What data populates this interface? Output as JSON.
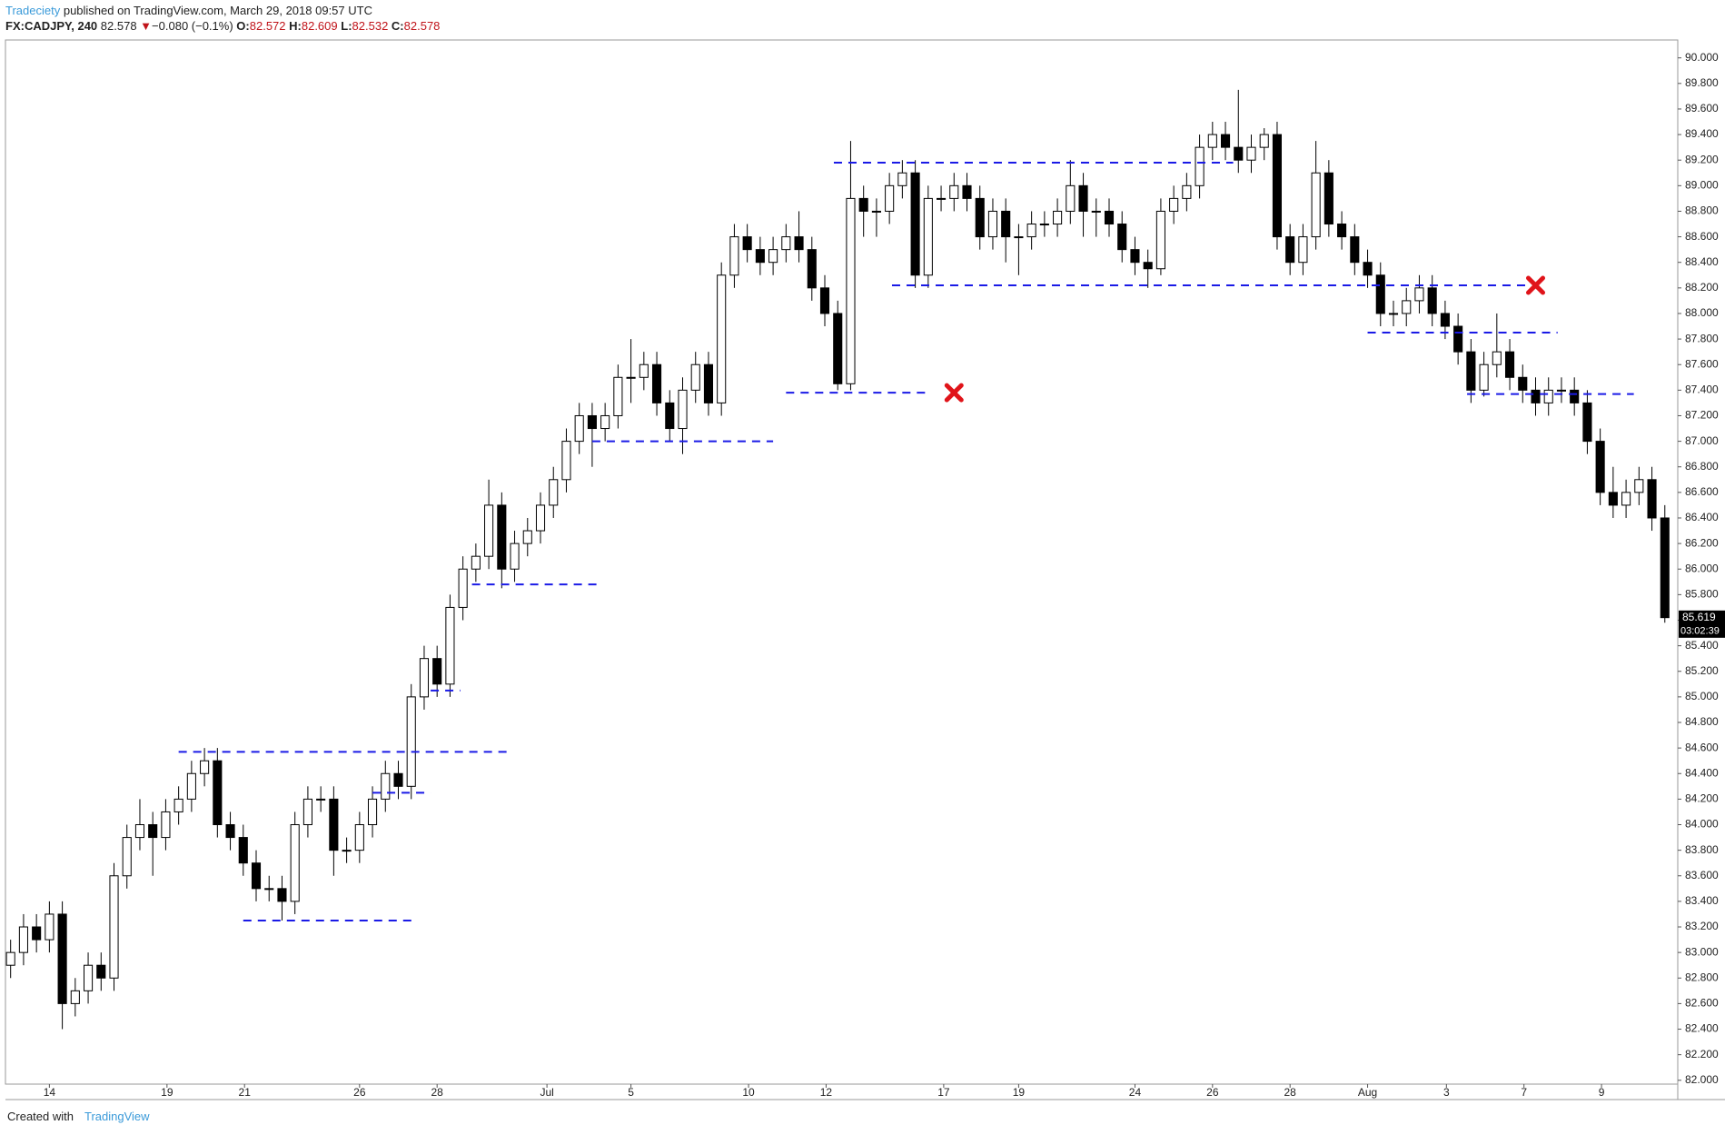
{
  "header": {
    "author": "Tradeciety",
    "published": "published on TradingView.com, March 29, 2018 09:57 UTC",
    "symbol": "FX:CADJPY, 240",
    "last": "82.578",
    "arrow": "▼",
    "change": "−0.080 (−0.1%)",
    "open_label": "O:",
    "open": "82.572",
    "high_label": "H:",
    "high": "82.609",
    "low_label": "L:",
    "low": "82.532",
    "close_label": "C:",
    "close": "82.578"
  },
  "footer": {
    "created": "Created with",
    "brand": "TradingView"
  },
  "chart_data": {
    "type": "candlestick",
    "up_color": "#ffffff",
    "down_color": "#000000",
    "wick_color": "#000000",
    "level_color": "#1a1ae6",
    "marker_color": "#e0141a",
    "open": [
      82.9,
      83.0,
      83.2,
      83.1,
      83.3,
      82.6,
      82.7,
      82.9,
      82.8,
      83.6,
      83.9,
      84.0,
      83.9,
      84.1,
      84.2,
      84.4,
      84.5,
      84.0,
      83.9,
      83.7,
      83.5,
      83.5,
      83.4,
      84.0,
      84.2,
      84.2,
      83.8,
      83.8,
      84.0,
      84.2,
      84.4,
      84.3,
      85.0,
      85.3,
      85.1,
      85.7,
      86.0,
      86.1,
      86.5,
      86.0,
      86.2,
      86.3,
      86.5,
      86.7,
      87.0,
      87.2,
      87.1,
      87.2,
      87.5,
      87.5,
      87.6,
      87.3,
      87.1,
      87.4,
      87.6,
      87.3,
      88.3,
      88.6,
      88.5,
      88.4,
      88.5,
      88.6,
      88.5,
      88.2,
      88.0,
      87.45,
      88.9,
      88.8,
      88.8,
      89.0,
      89.1,
      88.3,
      88.9,
      88.9,
      89.0,
      88.9,
      88.6,
      88.8,
      88.6,
      88.6,
      88.7,
      88.7,
      88.8,
      89.0,
      88.8,
      88.8,
      88.7,
      88.5,
      88.4,
      88.35,
      88.8,
      88.9,
      89.0,
      89.3,
      89.4,
      89.3,
      89.2,
      89.3,
      89.4,
      88.6,
      88.4,
      88.6,
      89.1,
      88.7,
      88.6,
      88.4,
      88.3,
      88.0,
      88.0,
      88.1,
      88.2,
      88.0,
      87.9,
      87.7,
      87.4,
      87.6,
      87.7,
      87.5,
      87.4,
      87.3,
      87.4,
      87.4,
      87.3,
      87.0,
      86.6,
      86.5,
      86.6,
      86.7,
      86.4
    ],
    "high": [
      83.1,
      83.3,
      83.3,
      83.4,
      83.4,
      82.8,
      83.0,
      83.0,
      83.7,
      84.0,
      84.2,
      84.1,
      84.2,
      84.3,
      84.5,
      84.6,
      84.6,
      84.1,
      84.0,
      83.8,
      83.6,
      83.6,
      84.1,
      84.3,
      84.3,
      84.3,
      83.9,
      84.1,
      84.3,
      84.5,
      84.5,
      85.1,
      85.4,
      85.4,
      85.8,
      86.1,
      86.2,
      86.7,
      86.6,
      86.3,
      86.4,
      86.6,
      86.8,
      87.1,
      87.3,
      87.3,
      87.3,
      87.6,
      87.8,
      87.7,
      87.7,
      87.4,
      87.5,
      87.7,
      87.7,
      88.4,
      88.7,
      88.7,
      88.6,
      88.6,
      88.7,
      88.8,
      88.6,
      88.3,
      88.1,
      89.35,
      89.0,
      88.9,
      89.1,
      89.2,
      89.2,
      89.0,
      89.0,
      89.1,
      89.1,
      89.0,
      88.9,
      88.9,
      88.7,
      88.8,
      88.8,
      88.9,
      89.2,
      89.1,
      88.9,
      88.9,
      88.8,
      88.6,
      88.5,
      88.9,
      89.0,
      89.1,
      89.4,
      89.5,
      89.5,
      89.75,
      89.4,
      89.45,
      89.5,
      88.7,
      88.7,
      89.35,
      89.2,
      88.8,
      88.7,
      88.5,
      88.4,
      88.1,
      88.2,
      88.3,
      88.3,
      88.1,
      88.0,
      87.8,
      87.7,
      88.0,
      87.8,
      87.6,
      87.5,
      87.5,
      87.5,
      87.5,
      87.4,
      87.1,
      86.8,
      86.7,
      86.8,
      86.8,
      86.5
    ],
    "low": [
      82.8,
      82.9,
      83.0,
      83.0,
      82.4,
      82.5,
      82.6,
      82.7,
      82.7,
      83.5,
      83.8,
      83.6,
      83.8,
      84.0,
      84.1,
      84.3,
      83.9,
      83.8,
      83.6,
      83.4,
      83.4,
      83.25,
      83.3,
      83.9,
      84.1,
      83.6,
      83.7,
      83.7,
      83.9,
      84.1,
      84.2,
      84.2,
      84.9,
      85.0,
      85.0,
      85.6,
      85.9,
      86.0,
      85.85,
      85.9,
      86.1,
      86.2,
      86.4,
      86.6,
      86.9,
      86.8,
      87.0,
      87.1,
      87.3,
      87.4,
      87.2,
      87.0,
      86.9,
      87.3,
      87.2,
      87.2,
      88.2,
      88.4,
      88.3,
      88.3,
      88.4,
      88.4,
      88.1,
      87.9,
      87.4,
      87.4,
      88.6,
      88.6,
      88.7,
      88.9,
      88.2,
      88.2,
      88.8,
      88.8,
      88.8,
      88.5,
      88.5,
      88.4,
      88.3,
      88.5,
      88.6,
      88.6,
      88.7,
      88.6,
      88.6,
      88.6,
      88.4,
      88.3,
      88.2,
      88.3,
      88.7,
      88.8,
      88.9,
      89.2,
      89.2,
      89.1,
      89.1,
      89.2,
      88.5,
      88.3,
      88.3,
      88.5,
      88.6,
      88.5,
      88.3,
      88.2,
      87.9,
      87.9,
      87.9,
      88.0,
      87.9,
      87.8,
      87.6,
      87.3,
      87.35,
      87.5,
      87.4,
      87.3,
      87.2,
      87.2,
      87.3,
      87.2,
      86.9,
      86.5,
      86.4,
      86.4,
      86.5,
      86.3,
      85.58
    ],
    "close": [
      83.0,
      83.2,
      83.1,
      83.3,
      82.6,
      82.7,
      82.9,
      82.8,
      83.6,
      83.9,
      84.0,
      83.9,
      84.1,
      84.2,
      84.4,
      84.5,
      84.0,
      83.9,
      83.7,
      83.5,
      83.5,
      83.4,
      84.0,
      84.2,
      84.2,
      83.8,
      83.8,
      84.0,
      84.2,
      84.4,
      84.3,
      85.0,
      85.3,
      85.1,
      85.7,
      86.0,
      86.1,
      86.5,
      86.0,
      86.2,
      86.3,
      86.5,
      86.7,
      87.0,
      87.2,
      87.1,
      87.2,
      87.5,
      87.5,
      87.6,
      87.3,
      87.1,
      87.4,
      87.6,
      87.3,
      88.3,
      88.6,
      88.5,
      88.4,
      88.5,
      88.6,
      88.5,
      88.2,
      88.0,
      87.45,
      88.9,
      88.8,
      88.8,
      89.0,
      89.1,
      88.3,
      88.9,
      88.9,
      89.0,
      88.9,
      88.6,
      88.8,
      88.6,
      88.6,
      88.7,
      88.7,
      88.8,
      89.0,
      88.8,
      88.8,
      88.7,
      88.5,
      88.4,
      88.35,
      88.8,
      88.9,
      89.0,
      89.3,
      89.4,
      89.3,
      89.2,
      89.3,
      89.4,
      88.6,
      88.4,
      88.6,
      89.1,
      88.7,
      88.6,
      88.4,
      88.3,
      88.0,
      88.0,
      88.1,
      88.2,
      88.0,
      87.9,
      87.7,
      87.4,
      87.6,
      87.7,
      87.5,
      87.4,
      87.3,
      87.4,
      87.4,
      87.3,
      87.0,
      86.6,
      86.5,
      86.6,
      86.7,
      86.4,
      85.62
    ],
    "xlim": [
      -0.4,
      129
    ],
    "xticks": [
      {
        "value": 3.0,
        "label": "14"
      },
      {
        "value": 12.1,
        "label": "19"
      },
      {
        "value": 18.1,
        "label": "21"
      },
      {
        "value": 27.0,
        "label": "26"
      },
      {
        "value": 33.0,
        "label": "28"
      },
      {
        "value": 41.5,
        "label": "Jul"
      },
      {
        "value": 48.0,
        "label": "5"
      },
      {
        "value": 57.1,
        "label": "10"
      },
      {
        "value": 63.1,
        "label": "12"
      },
      {
        "value": 72.2,
        "label": "17"
      },
      {
        "value": 78.0,
        "label": "19"
      },
      {
        "value": 87.0,
        "label": "24"
      },
      {
        "value": 93.0,
        "label": "26"
      },
      {
        "value": 99.0,
        "label": "28"
      },
      {
        "value": 105.0,
        "label": "Aug"
      },
      {
        "value": 111.1,
        "label": "3"
      },
      {
        "value": 117.1,
        "label": "7"
      },
      {
        "value": 123.1,
        "label": "9"
      }
    ],
    "ylim": [
      81.97,
      90.14
    ],
    "yticks": [
      {
        "value": 82.0,
        "label": "82.000"
      },
      {
        "value": 82.2,
        "label": "82.200"
      },
      {
        "value": 82.4,
        "label": "82.400"
      },
      {
        "value": 82.6,
        "label": "82.600"
      },
      {
        "value": 82.8,
        "label": "82.800"
      },
      {
        "value": 83.0,
        "label": "83.000"
      },
      {
        "value": 83.2,
        "label": "83.200"
      },
      {
        "value": 83.4,
        "label": "83.400"
      },
      {
        "value": 83.6,
        "label": "83.600"
      },
      {
        "value": 83.8,
        "label": "83.800"
      },
      {
        "value": 84.0,
        "label": "84.000"
      },
      {
        "value": 84.2,
        "label": "84.200"
      },
      {
        "value": 84.4,
        "label": "84.400"
      },
      {
        "value": 84.6,
        "label": "84.600"
      },
      {
        "value": 84.8,
        "label": "84.800"
      },
      {
        "value": 85.0,
        "label": "85.000"
      },
      {
        "value": 85.2,
        "label": "85.200"
      },
      {
        "value": 85.4,
        "label": "85.400"
      },
      {
        "value": 85.6,
        "label": "85.600"
      },
      {
        "value": 85.8,
        "label": "85.800"
      },
      {
        "value": 86.0,
        "label": "86.000"
      },
      {
        "value": 86.2,
        "label": "86.200"
      },
      {
        "value": 86.4,
        "label": "86.400"
      },
      {
        "value": 86.6,
        "label": "86.600"
      },
      {
        "value": 86.8,
        "label": "86.800"
      },
      {
        "value": 87.0,
        "label": "87.000"
      },
      {
        "value": 87.2,
        "label": "87.200"
      },
      {
        "value": 87.4,
        "label": "87.400"
      },
      {
        "value": 87.6,
        "label": "87.600"
      },
      {
        "value": 87.8,
        "label": "87.800"
      },
      {
        "value": 88.0,
        "label": "88.000"
      },
      {
        "value": 88.2,
        "label": "88.200"
      },
      {
        "value": 88.4,
        "label": "88.400"
      },
      {
        "value": 88.6,
        "label": "88.600"
      },
      {
        "value": 88.8,
        "label": "88.800"
      },
      {
        "value": 89.0,
        "label": "89.000"
      },
      {
        "value": 89.2,
        "label": "89.200"
      },
      {
        "value": 89.4,
        "label": "89.400"
      },
      {
        "value": 89.6,
        "label": "89.600"
      },
      {
        "value": 89.8,
        "label": "89.800"
      },
      {
        "value": 90.0,
        "label": "90.000"
      }
    ],
    "last_price": {
      "value": 85.619,
      "label": "85.619"
    },
    "countdown": "03:02:39",
    "levels": [
      {
        "value": 89.18,
        "x": [
          63.7,
          94.6
        ]
      },
      {
        "value": 88.22,
        "x": [
          68.2,
          117.6
        ]
      },
      {
        "value": 87.38,
        "x": [
          60.0,
          71.1
        ]
      },
      {
        "value": 87.0,
        "x": [
          45.0,
          59.0
        ]
      },
      {
        "value": 85.88,
        "x": [
          35.7,
          45.4
        ]
      },
      {
        "value": 85.05,
        "x": [
          32.5,
          34.8
        ]
      },
      {
        "value": 84.57,
        "x": [
          13.0,
          38.5
        ]
      },
      {
        "value": 84.25,
        "x": [
          28.0,
          32.5
        ]
      },
      {
        "value": 83.25,
        "x": [
          18.0,
          31.2
        ]
      },
      {
        "value": 87.85,
        "x": [
          105.0,
          119.7
        ]
      },
      {
        "value": 87.37,
        "x": [
          112.7,
          125.6
        ]
      }
    ],
    "markers": [
      {
        "x": 73.0,
        "y": 87.38
      },
      {
        "x": 118.0,
        "y": 88.22
      }
    ]
  }
}
